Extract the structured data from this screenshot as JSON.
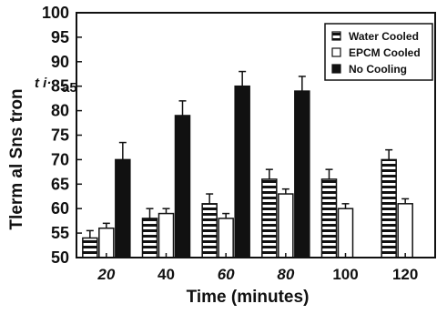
{
  "chart_data": {
    "type": "bar",
    "categories": [
      "20",
      "40",
      "60",
      "80",
      "100",
      "120"
    ],
    "series": [
      {
        "name": "Water Cooled",
        "values": [
          54,
          58,
          61,
          66,
          66,
          70
        ],
        "errors": [
          1.5,
          2,
          2,
          2,
          2,
          2
        ]
      },
      {
        "name": "EPCM Cooled",
        "values": [
          56,
          59,
          58,
          63,
          60,
          61
        ],
        "errors": [
          1,
          1,
          1,
          1,
          1,
          1
        ]
      },
      {
        "name": "No Cooling",
        "values": [
          70,
          79,
          85,
          84,
          null,
          null
        ],
        "errors": [
          3.5,
          3,
          3,
          3,
          null,
          null
        ]
      }
    ],
    "xlabel": "Time (minutes)",
    "ylabel": "Tlerm al Sns tron",
    "ylabel_fragment": "t i·",
    "ylabel_fragment2": "a5",
    "ylim": [
      50,
      100
    ],
    "yticks": [
      50,
      55,
      60,
      65,
      70,
      75,
      80,
      85,
      90,
      95,
      100
    ],
    "legend_position": "top-right",
    "grid": false
  }
}
